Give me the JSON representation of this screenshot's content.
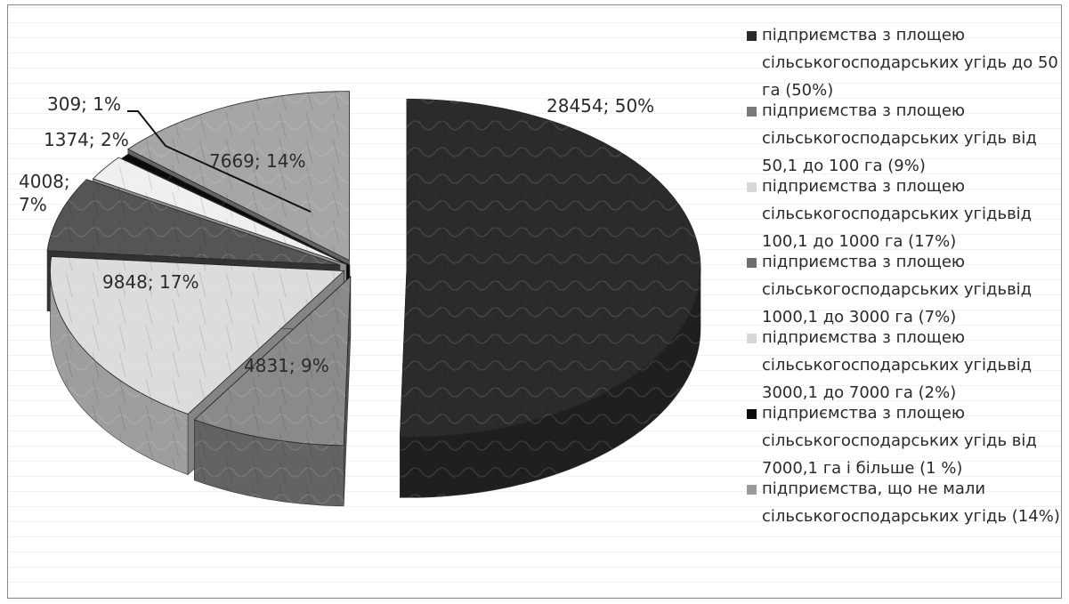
{
  "chart_data": {
    "type": "pie",
    "title": "",
    "values": [
      28454,
      4831,
      9848,
      4008,
      1374,
      309,
      7669
    ],
    "data_labels": [
      "28454; 50%",
      "4831; 9%",
      "9848; 17%",
      "4008;\n7%",
      "1374; 2%",
      "309; 1%",
      "7669; 14%"
    ],
    "slice_colors": [
      "#2b2b2b",
      "#8a8a8a",
      "#dcdcdc",
      "#555555",
      "#efefef",
      "#0a0a0a",
      "#a6a6a6"
    ],
    "legend": [
      "підприємства з площею сільськогосподарських угідь до 50 га (50%)",
      "підприємства з площею сільськогосподарських угідь від 50,1 до 100 га (9%)",
      "підприємства з площею сільськогосподарських угідьвід 100,1 до 1000 га (17%)",
      "підприємства з площею сільськогосподарських угідьвід 1000,1 до 3000 га (7%)",
      "підприємства з площею сільськогосподарських угідьвід 3000,1 до 7000 га (2%)",
      "підприємства з площею сільськогосподарських угідь від 7000,1 га і більше (1 %)",
      "підприємства, що не мали сільськогосподарських угідь (14%)"
    ],
    "legend_colors": [
      "#2b2b2b",
      "#7a7a7a",
      "#d8d8d8",
      "#6e6e6e",
      "#d8d8d8",
      "#0a0a0a",
      "#9a9a9a"
    ],
    "legend_position": "right",
    "exploded": true,
    "three_d": true
  }
}
